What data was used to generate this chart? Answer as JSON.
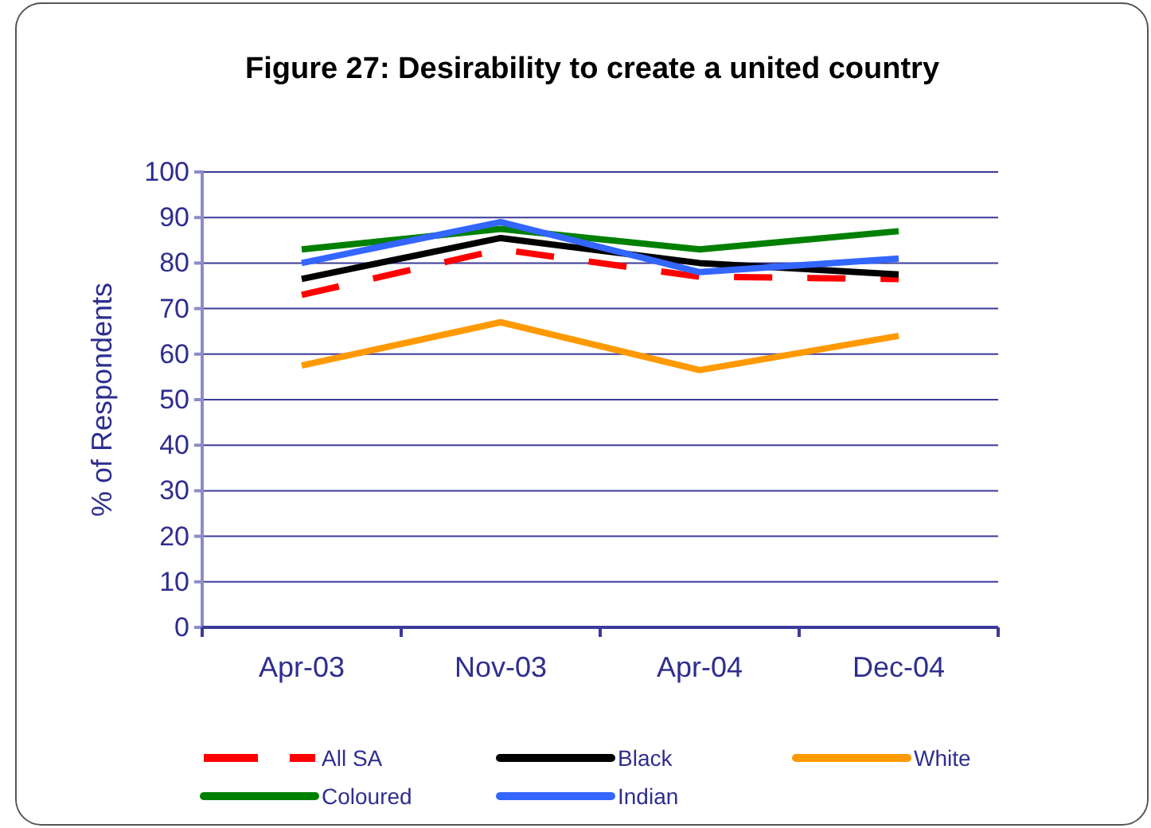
{
  "chart_data": {
    "type": "line",
    "title": "Figure 27: Desirability to create a united country",
    "ylabel": "% of Respondents",
    "categories": [
      "Apr-03",
      "Nov-03",
      "Apr-04",
      "Dec-04"
    ],
    "series": [
      {
        "name": "All SA",
        "color": "#ff0000",
        "line_style": "dashed",
        "values": [
          73,
          83,
          77,
          76.5
        ]
      },
      {
        "name": "Black",
        "color": "#000000",
        "line_style": "solid",
        "values": [
          76.5,
          85.5,
          80,
          77.5
        ]
      },
      {
        "name": "White",
        "color": "#ff9900",
        "line_style": "solid",
        "values": [
          57.5,
          67,
          56.5,
          64
        ]
      },
      {
        "name": "Coloured",
        "color": "#008000",
        "line_style": "solid",
        "values": [
          83,
          87.5,
          83,
          87
        ]
      },
      {
        "name": "Indian",
        "color": "#3366ff",
        "line_style": "solid",
        "values": [
          80,
          89,
          78,
          81
        ]
      }
    ],
    "ylim": [
      0,
      100
    ],
    "yticks": [
      0,
      10,
      20,
      30,
      40,
      50,
      60,
      70,
      80,
      90,
      100
    ],
    "grid": "y",
    "legend": "bottom",
    "marker": "none"
  }
}
